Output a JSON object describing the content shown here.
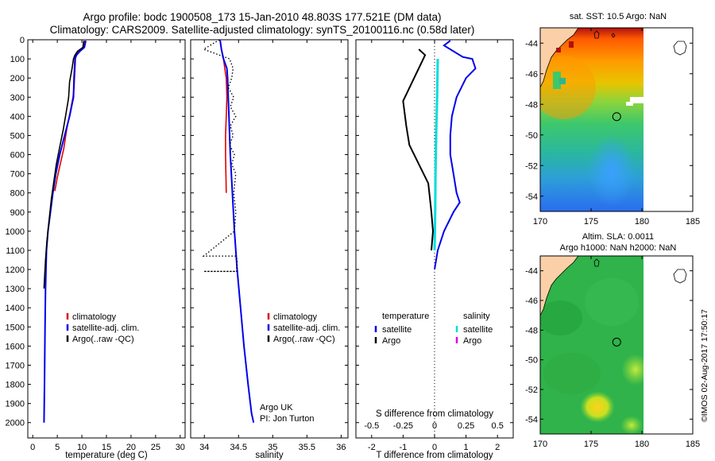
{
  "titles": {
    "line1": "Argo profile: bodc 1900508_173 15-Jan-2010 48.803S 177.521E (DM data)",
    "line2": "Climatology: CARS2009. Satellite-adjusted climatology: synTS_20100116.nc (0.58d later)"
  },
  "chart_data": [
    {
      "type": "line",
      "id": "temperature",
      "xlabel": "temperature (deg C)",
      "ylabel": "",
      "xlim": [
        -1,
        31
      ],
      "ylim": [
        0,
        2080
      ],
      "y_reversed": true,
      "x_ticks": [
        "0",
        "5",
        "10",
        "15",
        "20",
        "25",
        "30"
      ],
      "y_ticks": [
        "0",
        "100",
        "200",
        "300",
        "400",
        "500",
        "600",
        "700",
        "800",
        "900",
        "1000",
        "1100",
        "1200",
        "1300",
        "1400",
        "1500",
        "1600",
        "1700",
        "1800",
        "1900",
        "2000"
      ],
      "legend": [
        "climatology",
        "satellite-adj. clim.",
        "Argo(..raw -QC)"
      ],
      "colors": {
        "climatology": "#e00000",
        "satellite": "#0000ee",
        "argo": "#000000"
      },
      "series": [
        {
          "name": "climatology",
          "x": [
            10.6,
            10.3,
            9.2,
            8.8,
            8.7,
            8.6,
            8.5,
            8.4,
            8.2,
            7.6,
            6.9,
            6.3,
            5.6,
            5.0,
            4.5
          ],
          "y": [
            5,
            40,
            60,
            80,
            100,
            150,
            200,
            250,
            300,
            380,
            470,
            570,
            650,
            720,
            790
          ]
        },
        {
          "name": "satellite-adj. clim.",
          "x": [
            10.8,
            10.5,
            9.6,
            8.9,
            8.6,
            8.4,
            8.3,
            7.5,
            6.5,
            5.5,
            4.7,
            4.1,
            3.6,
            3.1,
            2.8,
            2.6,
            2.5,
            2.4,
            2.3
          ],
          "y": [
            5,
            40,
            60,
            80,
            100,
            200,
            300,
            400,
            500,
            600,
            700,
            800,
            900,
            1000,
            1100,
            1300,
            1500,
            1800,
            2000
          ]
        },
        {
          "name": "Argo(..raw -QC)",
          "x": [
            10.4,
            10.2,
            9.1,
            8.6,
            8.3,
            8.0,
            7.5,
            7.3,
            7.2,
            6.8,
            6.2,
            5.5,
            4.8,
            4.3,
            3.8,
            3.3,
            2.9,
            2.6,
            2.4,
            2.3
          ],
          "y": [
            5,
            40,
            60,
            80,
            100,
            150,
            220,
            300,
            320,
            380,
            470,
            560,
            650,
            740,
            830,
            950,
            1050,
            1150,
            1250,
            1300
          ]
        }
      ]
    },
    {
      "type": "line",
      "id": "salinity",
      "xlabel": "salinity",
      "ylabel": "",
      "xlim": [
        33.8,
        36.1
      ],
      "ylim": [
        0,
        2080
      ],
      "y_reversed": true,
      "x_ticks": [
        "34",
        "34.5",
        "35",
        "35.5",
        "36"
      ],
      "legend": [
        "climatology",
        "satellite-adj. clim.",
        "Argo(..raw -QC)"
      ],
      "annotations": [
        "Argo UK",
        "PI: Jon Turton"
      ],
      "colors": {
        "climatology": "#e00000",
        "satellite": "#0000ee",
        "argo": "#000000"
      },
      "series": [
        {
          "name": "climatology",
          "x": [
            34.23,
            34.25,
            34.28,
            34.3,
            34.32,
            34.33,
            34.32,
            34.31,
            34.31,
            34.32
          ],
          "y": [
            0,
            50,
            100,
            150,
            200,
            300,
            400,
            500,
            600,
            800
          ]
        },
        {
          "name": "satellite-adj. clim.",
          "x": [
            34.23,
            34.25,
            34.28,
            34.33,
            34.34,
            34.35,
            34.36,
            34.38,
            34.41,
            34.44,
            34.48,
            34.53,
            34.58,
            34.64,
            34.69,
            34.72
          ],
          "y": [
            0,
            50,
            100,
            150,
            200,
            300,
            400,
            600,
            800,
            1000,
            1200,
            1400,
            1600,
            1800,
            1950,
            2000
          ]
        },
        {
          "name": "Argo(..raw -QC)",
          "x": [
            34.22,
            33.99,
            34.37,
            34.42,
            34.4,
            34.35,
            34.43,
            34.38,
            34.46,
            34.38,
            34.42,
            34.37,
            34.44,
            34.4,
            34.46,
            34.43,
            34.46,
            34.44,
            33.99,
            34.46,
            34.48,
            34.47,
            33.99,
            34.47
          ],
          "y": [
            0,
            50,
            100,
            150,
            200,
            250,
            300,
            350,
            400,
            450,
            500,
            550,
            600,
            650,
            700,
            800,
            900,
            1000,
            1130,
            1130,
            1150,
            1210,
            1210,
            1210
          ],
          "style": "dotted"
        }
      ]
    },
    {
      "type": "line",
      "id": "difference",
      "xlabel": "T difference from climatology",
      "xlabel_top": "S difference from climatology",
      "xlim": [
        -2.5,
        2.5
      ],
      "ylim": [
        0,
        2080
      ],
      "y_reversed": true,
      "x_ticks_T": [
        "-2",
        "-1",
        "0",
        "1",
        "2"
      ],
      "x_ticks_S": [
        "-0.5",
        "-0.25",
        "0",
        "0.25",
        "0.5"
      ],
      "legend_headers": [
        "temperature",
        "salinity"
      ],
      "legend": [
        "satellite",
        "Argo",
        "satellite",
        "Argo"
      ],
      "colors": {
        "t_satellite": "#0000ee",
        "t_argo": "#000000",
        "s_satellite": "#00dddd",
        "s_argo": "#dd00dd"
      },
      "series": [
        {
          "name": "T satellite",
          "x": [
            0.5,
            0.3,
            0.6,
            0.9,
            1.2,
            1.3,
            1.0,
            0.7,
            0.55,
            0.5,
            0.5,
            0.6,
            0.7,
            0.8,
            0.6,
            0.3,
            0.1,
            0.0
          ],
          "y": [
            5,
            30,
            60,
            90,
            100,
            150,
            200,
            300,
            400,
            500,
            600,
            700,
            800,
            850,
            900,
            1000,
            1100,
            1200
          ]
        },
        {
          "name": "S satellite",
          "x": [
            0.1,
            0.08,
            0.05,
            0.03,
            0.02,
            0.0
          ],
          "y": [
            100,
            300,
            500,
            700,
            900,
            1100
          ]
        },
        {
          "name": "T Argo",
          "x": [
            -0.5,
            -0.3,
            -1.0,
            -0.9,
            -0.8,
            -0.5,
            -0.2,
            -0.1,
            -0.05,
            -0.1
          ],
          "y": [
            50,
            80,
            320,
            450,
            550,
            650,
            750,
            900,
            1000,
            1100
          ]
        }
      ]
    }
  ],
  "maps": [
    {
      "id": "map-sst",
      "title": "sat. SST: 10.5 Argo: NaN",
      "x_ticks": [
        "170",
        "175",
        "180",
        "185"
      ],
      "y_ticks": [
        "-44",
        "-46",
        "-48",
        "-50",
        "-52",
        "-54"
      ],
      "xlim": [
        170,
        185
      ],
      "ylim": [
        -55,
        -43
      ],
      "float_position": {
        "lon": 177.521,
        "lat": -48.803
      }
    },
    {
      "id": "map-sla",
      "title_line1": "Altim. SLA: 0.0011",
      "title_line2": "Argo h1000: NaN h2000: NaN",
      "x_ticks": [
        "170",
        "175",
        "180",
        "185"
      ],
      "y_ticks": [
        "-44",
        "-46",
        "-48",
        "-50",
        "-52",
        "-54"
      ],
      "xlim": [
        170,
        185
      ],
      "ylim": [
        -55,
        -43
      ],
      "float_position": {
        "lon": 177.521,
        "lat": -48.803
      }
    }
  ],
  "footer": "©IMOS 02-Aug-2017 17:50:17"
}
